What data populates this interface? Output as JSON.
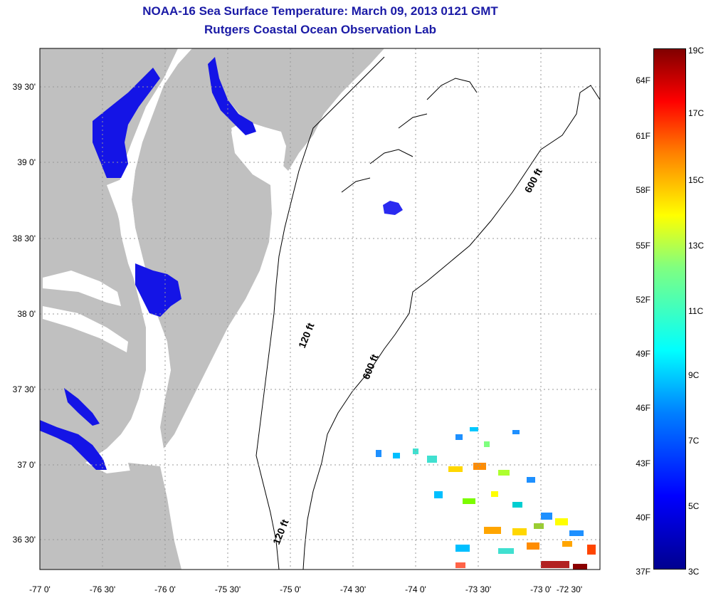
{
  "title": "NOAA-16 Sea Surface Temperature:  March 09, 2013 0121 GMT",
  "subtitle": "Rutgers Coastal Ocean Observation Lab",
  "map": {
    "lon_ticks": [
      "-77 0'",
      "-76 30'",
      "-76 0'",
      "-75 30'",
      "-75 0'",
      "-74 30'",
      "-74 0'",
      "-73 30'",
      "-73 0'",
      "-72 30'"
    ],
    "lat_ticks": [
      "39 30'",
      "39 0'",
      "38 30'",
      "38 0'",
      "37 30'",
      "37 0'",
      "36 30'"
    ],
    "contour_labels": [
      "600 ft",
      "120 ft",
      "600 ft",
      "120 ft"
    ],
    "land_color": "#c0c0c0",
    "water_color": "#ffffff"
  },
  "colorbar": {
    "fahrenheit": [
      "64F",
      "61F",
      "58F",
      "55F",
      "52F",
      "49F",
      "46F",
      "43F",
      "40F",
      "37F"
    ],
    "celsius": [
      "19C",
      "17C",
      "15C",
      "13C",
      "11C",
      "9C",
      "7C",
      "5C",
      "3C"
    ],
    "range_c": [
      3,
      19
    ]
  }
}
